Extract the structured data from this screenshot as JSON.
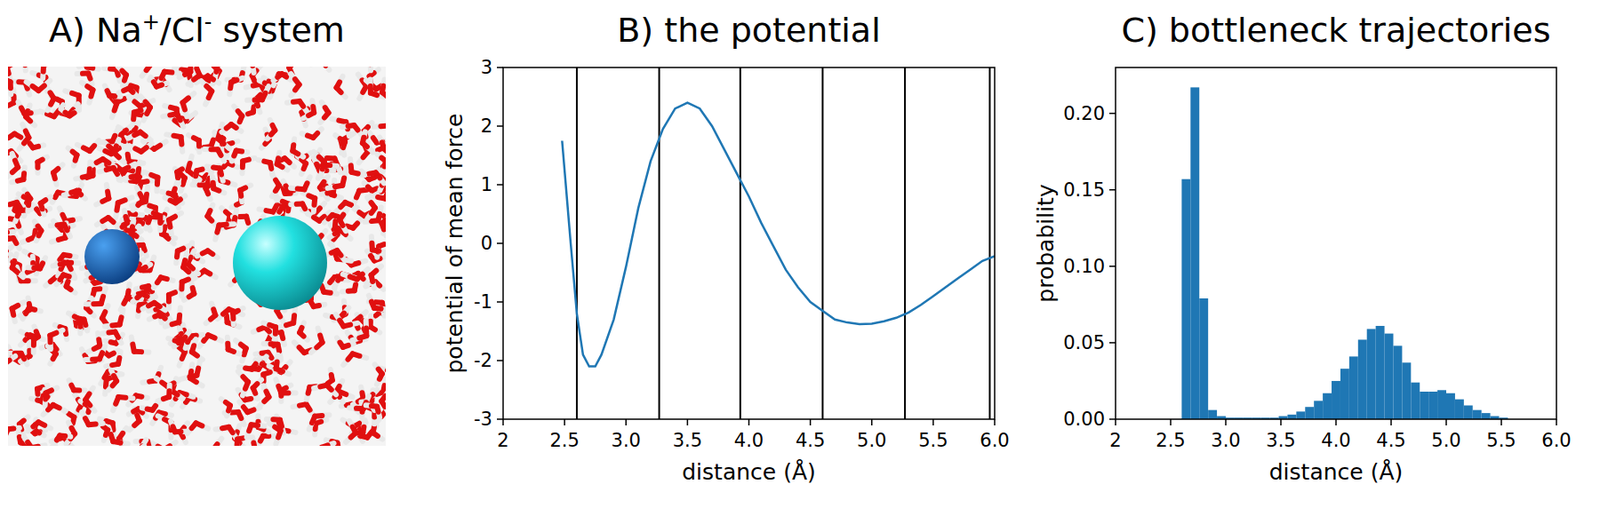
{
  "panel_a": {
    "title_parts": [
      "A) Na",
      "+",
      "/Cl",
      "-",
      " system"
    ]
  },
  "chart_data": [
    {
      "type": "line",
      "title": "B) the potential",
      "x_label": "distance (Å)",
      "y_label": "potential of mean force",
      "x": [
        2.48,
        2.55,
        2.6,
        2.65,
        2.7,
        2.75,
        2.8,
        2.9,
        3.0,
        3.1,
        3.2,
        3.3,
        3.4,
        3.5,
        3.6,
        3.7,
        3.8,
        3.9,
        4.0,
        4.1,
        4.2,
        4.3,
        4.4,
        4.5,
        4.6,
        4.7,
        4.8,
        4.9,
        5.0,
        5.1,
        5.2,
        5.3,
        5.4,
        5.5,
        5.6,
        5.7,
        5.8,
        5.9,
        6.0
      ],
      "series": [
        {
          "color": "#1f77b4",
          "values": [
            1.75,
            0.0,
            -1.2,
            -1.9,
            -2.1,
            -2.1,
            -1.9,
            -1.3,
            -0.4,
            0.6,
            1.4,
            1.95,
            2.3,
            2.4,
            2.3,
            2.0,
            1.6,
            1.2,
            0.8,
            0.35,
            -0.05,
            -0.45,
            -0.75,
            -1.0,
            -1.15,
            -1.3,
            -1.35,
            -1.38,
            -1.37,
            -1.33,
            -1.27,
            -1.18,
            -1.05,
            -0.9,
            -0.75,
            -0.6,
            -0.45,
            -0.3,
            -0.22
          ]
        }
      ],
      "vertical_lines": [
        2.6,
        3.27,
        3.93,
        4.6,
        5.27,
        5.96
      ],
      "xlim": [
        2,
        6
      ],
      "ylim": [
        -3,
        3
      ],
      "xticks": [
        2,
        2.5,
        {
          "value": 3,
          "label": "3.0"
        },
        3.5,
        {
          "value": 4,
          "label": "4.0"
        },
        4.5,
        {
          "value": 5,
          "label": "5.0"
        },
        5.5,
        {
          "value": 6,
          "label": "6.0"
        }
      ],
      "yticks": [
        -3,
        -2,
        -1,
        0,
        1,
        2,
        3
      ]
    },
    {
      "type": "histogram",
      "title": "C) bottleneck trajectories",
      "x_label": "distance (Å)",
      "y_label": "probability",
      "color": "#1f77b4",
      "bins": [
        2.6,
        2.68,
        2.76,
        2.84,
        2.92,
        3.0,
        3.08,
        3.16,
        3.24,
        3.32,
        3.4,
        3.48,
        3.56,
        3.64,
        3.72,
        3.8,
        3.88,
        3.96,
        4.04,
        4.12,
        4.2,
        4.28,
        4.36,
        4.44,
        4.52,
        4.6,
        4.68,
        4.76,
        4.84,
        4.92,
        5.0,
        5.08,
        5.16,
        5.24,
        5.32,
        5.4,
        5.48,
        5.56
      ],
      "values": [
        0.157,
        0.217,
        0.079,
        0.006,
        0.002,
        0.001,
        0.001,
        0.001,
        0.001,
        0.001,
        0.001,
        0.002,
        0.003,
        0.005,
        0.008,
        0.012,
        0.017,
        0.025,
        0.033,
        0.041,
        0.052,
        0.059,
        0.061,
        0.056,
        0.048,
        0.037,
        0.024,
        0.018,
        0.018,
        0.019,
        0.017,
        0.013,
        0.009,
        0.006,
        0.004,
        0.002,
        0.001
      ],
      "xlim": [
        2,
        6
      ],
      "ylim": [
        0,
        0.23
      ],
      "xticks": [
        2,
        2.5,
        {
          "value": 3,
          "label": "3.0"
        },
        3.5,
        {
          "value": 4,
          "label": "4.0"
        },
        4.5,
        {
          "value": 5,
          "label": "5.0"
        },
        5.5,
        {
          "value": 6,
          "label": "6.0"
        }
      ],
      "yticks": [
        {
          "value": 0,
          "label": "0.00"
        },
        {
          "value": 0.05,
          "label": "0.05"
        },
        {
          "value": 0.1,
          "label": "0.10"
        },
        {
          "value": 0.15,
          "label": "0.15"
        },
        {
          "value": 0.2,
          "label": "0.20"
        }
      ]
    }
  ]
}
